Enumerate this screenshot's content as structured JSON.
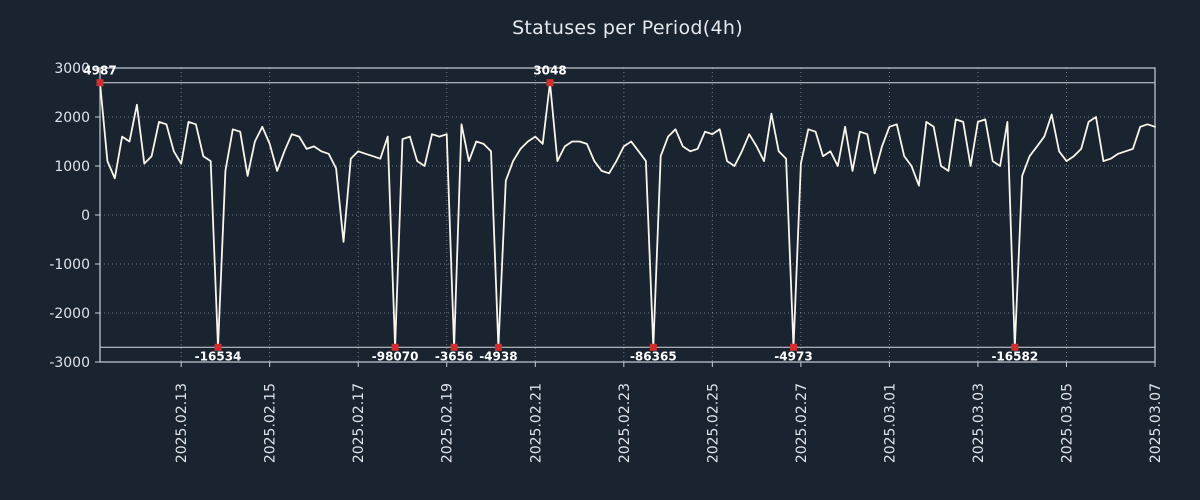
{
  "chart_data": {
    "type": "line",
    "title": "Statuses per Period(4h)",
    "ylim": [
      -3000,
      3000
    ],
    "yticks": [
      3000,
      2000,
      1000,
      0,
      -1000,
      -2000,
      -3000
    ],
    "clip_value": 2700,
    "interval": "4h",
    "x_tick_labels": [
      "2025.02.13",
      "2025.02.15",
      "2025.02.17",
      "2025.02.19",
      "2025.02.21",
      "2025.02.23",
      "2025.02.25",
      "2025.02.27",
      "2025.03.01",
      "2025.03.03",
      "2025.03.05",
      "2025.03.07"
    ],
    "x_tick_indices": [
      11,
      23,
      35,
      47,
      59,
      71,
      83,
      95,
      107,
      119,
      131,
      143
    ],
    "values": [
      4987,
      1100,
      750,
      1600,
      1500,
      2250,
      1050,
      1200,
      1900,
      1850,
      1300,
      1050,
      1900,
      1850,
      1200,
      1100,
      -16534,
      900,
      1750,
      1700,
      800,
      1500,
      1800,
      1450,
      900,
      1300,
      1650,
      1600,
      1350,
      1400,
      1300,
      1250,
      950,
      -550,
      1150,
      1300,
      1250,
      1200,
      1150,
      1600,
      -98070,
      1550,
      1600,
      1100,
      1000,
      1650,
      1600,
      1650,
      -3656,
      1850,
      1100,
      1500,
      1450,
      1300,
      -4938,
      700,
      1100,
      1350,
      1500,
      1600,
      1450,
      3048,
      1100,
      1400,
      1500,
      1500,
      1450,
      1100,
      900,
      850,
      1100,
      1400,
      1500,
      1300,
      1100,
      -86365,
      1200,
      1600,
      1750,
      1400,
      1300,
      1350,
      1700,
      1650,
      1750,
      1100,
      1000,
      1300,
      1650,
      1400,
      1100,
      2070,
      1300,
      1150,
      -4973,
      1050,
      1750,
      1700,
      1200,
      1300,
      1000,
      1800,
      900,
      1700,
      1650,
      850,
      1400,
      1800,
      1850,
      1200,
      1000,
      600,
      1900,
      1800,
      1000,
      900,
      1950,
      1900,
      1000,
      1900,
      1950,
      1100,
      1000,
      1900,
      -16582,
      800,
      1200,
      1400,
      1600,
      2050,
      1300,
      1100,
      1200,
      1350,
      1900,
      2000,
      1100,
      1150,
      1250,
      1300,
      1350,
      1800,
      1850,
      1800
    ],
    "annotations": [
      {
        "index": 0,
        "value": 4987,
        "label": "4987"
      },
      {
        "index": 16,
        "value": -16534,
        "label": "-16534"
      },
      {
        "index": 40,
        "value": -98070,
        "label": "-98070"
      },
      {
        "index": 48,
        "value": -3656,
        "label": "-3656"
      },
      {
        "index": 54,
        "value": -4938,
        "label": "-4938"
      },
      {
        "index": 61,
        "value": 3048,
        "label": "3048"
      },
      {
        "index": 75,
        "value": -86365,
        "label": "-86365"
      },
      {
        "index": 94,
        "value": -4973,
        "label": "-4973"
      },
      {
        "index": 124,
        "value": -16582,
        "label": "-16582"
      }
    ],
    "legend": "none",
    "grid": "dotted",
    "colors": {
      "background": "#1a2330",
      "line": "#f8f5ea",
      "marker": "#d02f2f",
      "grid": "#aeb6c2",
      "frame": "#c9cfd9",
      "clip_line": "#d4d9e0",
      "tick_text": "#dfe3ea",
      "annotation_text": "#ffffff"
    }
  }
}
